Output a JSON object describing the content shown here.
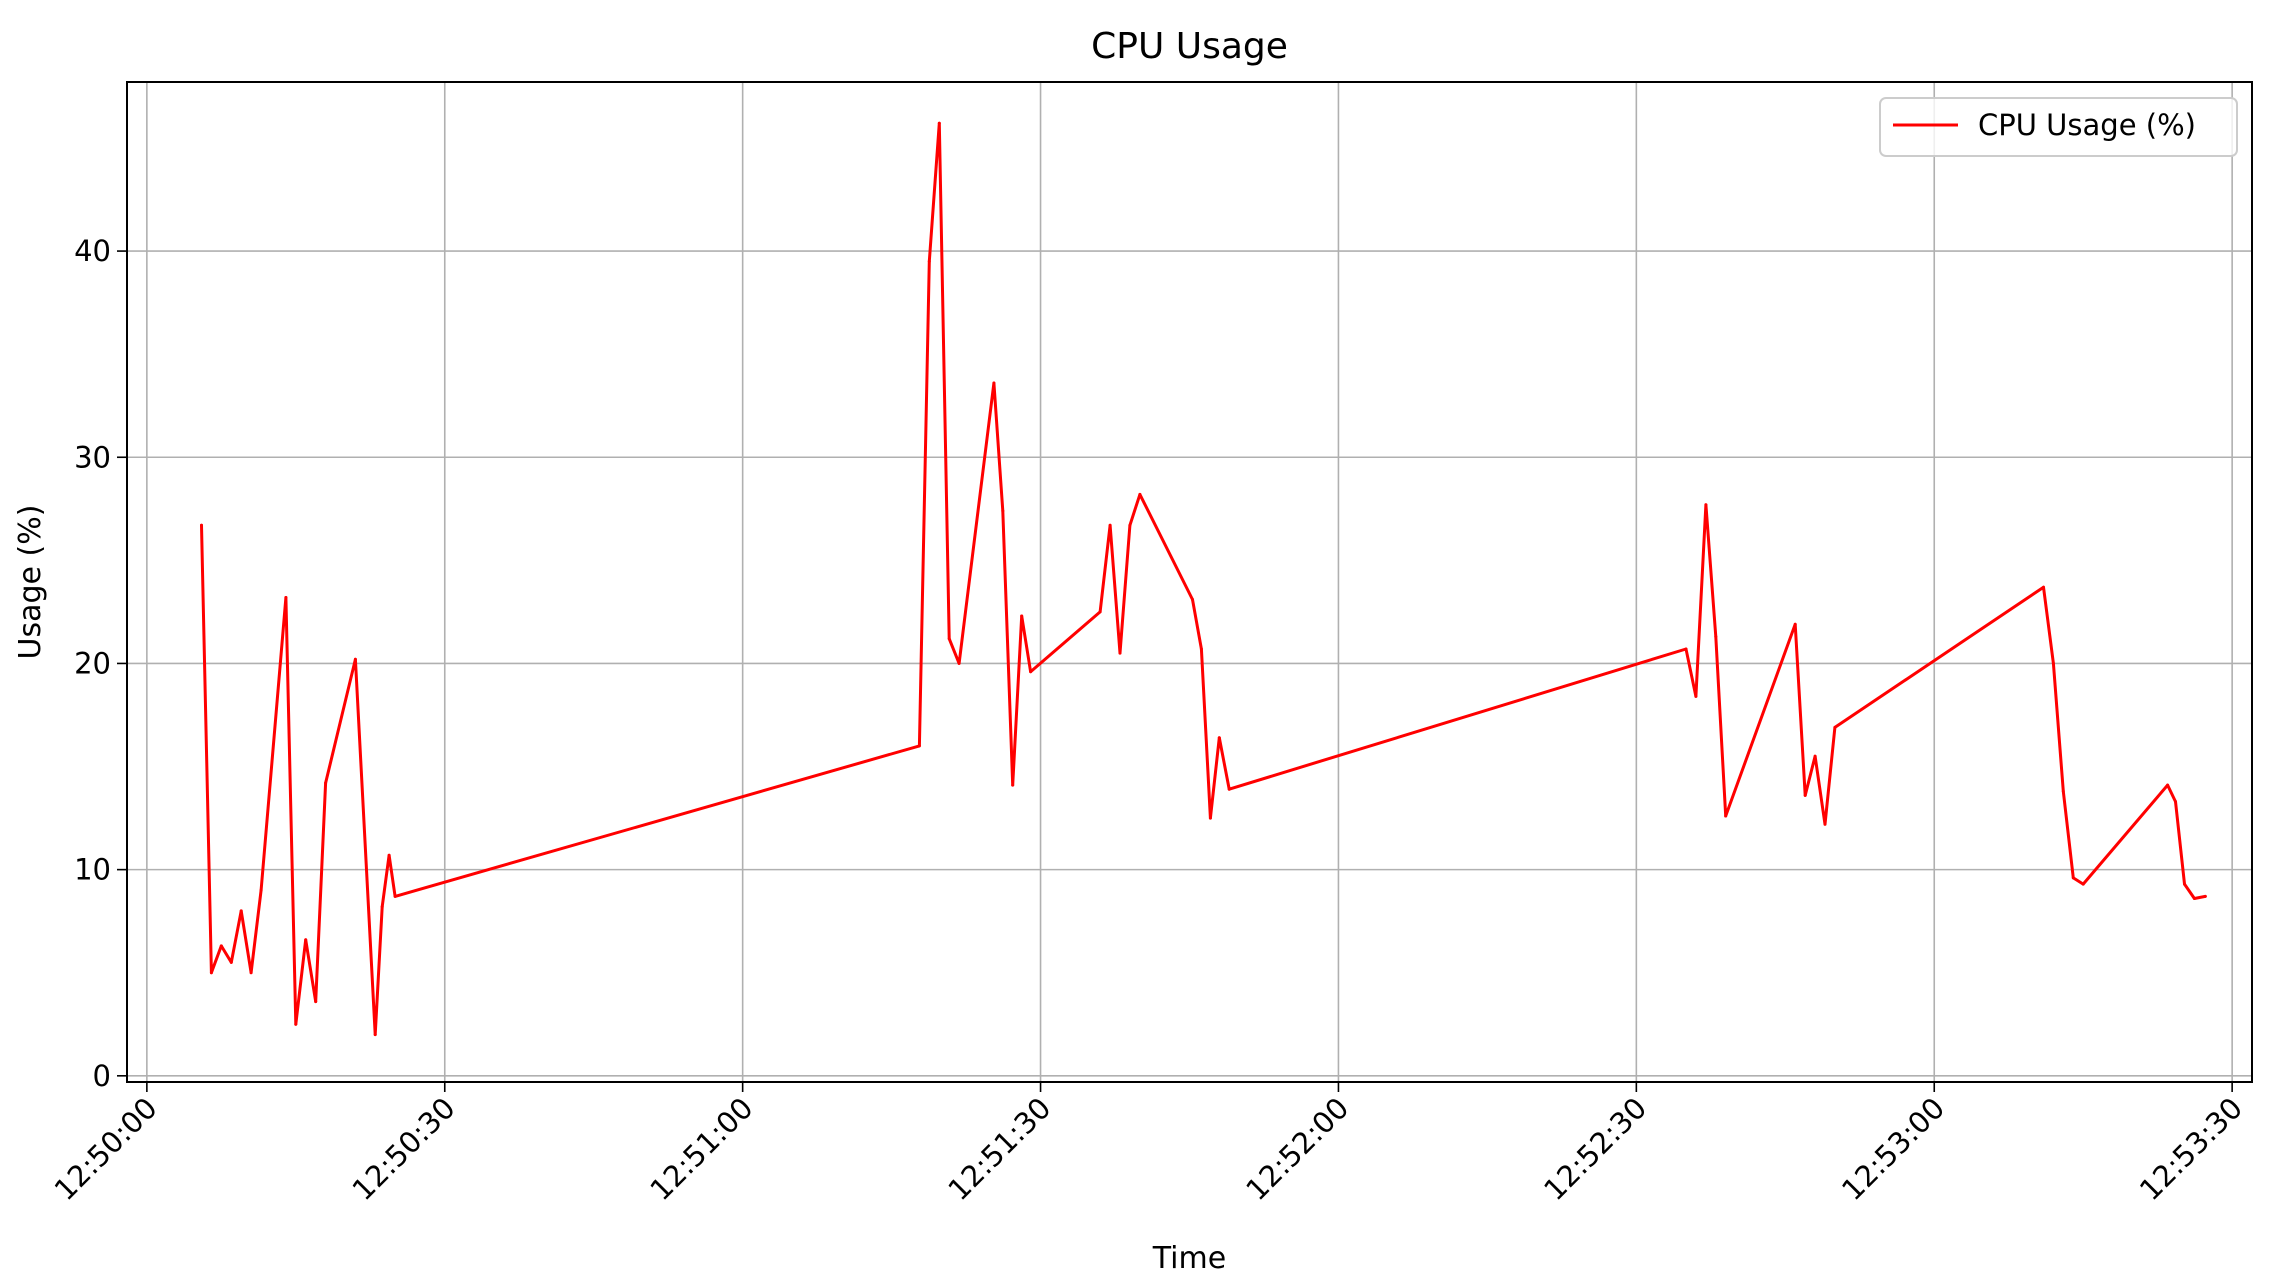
{
  "chart_data": {
    "type": "line",
    "title": "CPU Usage",
    "xlabel": "Time",
    "ylabel": "Usage (%)",
    "grid": true,
    "legend": {
      "position": "top-right",
      "entries": [
        "CPU Usage (%)"
      ]
    },
    "colors": {
      "series": "#ff0000",
      "grid": "#b0b0b0",
      "axes": "#000000",
      "legend_border": "#cccccc"
    },
    "xlim": [
      "12:49:58",
      "12:53:32"
    ],
    "ylim": [
      -0.3,
      48.2
    ],
    "x_ticks": [
      "12:50:00",
      "12:50:30",
      "12:51:00",
      "12:51:30",
      "12:52:00",
      "12:52:30",
      "12:53:00",
      "12:53:30"
    ],
    "y_ticks": [
      "0",
      "10",
      "20",
      "30",
      "40"
    ],
    "series": [
      {
        "name": "CPU Usage (%)",
        "color": "#ff0000",
        "x": [
          "12:50:05.5",
          "12:50:06.5",
          "12:50:07.5",
          "12:50:08.5",
          "12:50:09.5",
          "12:50:10.5",
          "12:50:11.5",
          "12:50:14",
          "12:50:15",
          "12:50:16",
          "12:50:17",
          "12:50:18",
          "12:50:21",
          "12:50:23",
          "12:50:23.7",
          "12:50:24.4",
          "12:50:25",
          "12:51:17.8",
          "12:51:18.8",
          "12:51:19.8",
          "12:51:20.8",
          "12:51:21.8",
          "12:51:25.3",
          "12:51:26.2",
          "12:51:27.2",
          "12:51:28.1",
          "12:51:29",
          "12:51:36",
          "12:51:37",
          "12:51:38",
          "12:51:39",
          "12:51:40",
          "12:51:45.3",
          "12:51:46.2",
          "12:51:47.1",
          "12:51:48",
          "12:51:49",
          "12:52:35",
          "12:52:36",
          "12:52:37",
          "12:52:38",
          "12:52:39",
          "12:52:46",
          "12:52:47",
          "12:52:48",
          "12:52:49",
          "12:52:50",
          "12:53:11",
          "12:53:12",
          "12:53:13",
          "12:53:14",
          "12:53:15",
          "12:53:23.5",
          "12:53:24.3",
          "12:53:25.2",
          "12:53:26.2",
          "12:53:27.3"
        ],
        "y": [
          26.7,
          5.0,
          6.3,
          5.5,
          8.0,
          5.0,
          9.0,
          23.2,
          2.5,
          6.6,
          3.6,
          14.2,
          20.2,
          2.0,
          8.2,
          10.7,
          8.7,
          16.0,
          39.5,
          46.2,
          21.2,
          20.0,
          33.6,
          27.4,
          14.1,
          22.3,
          19.6,
          22.5,
          26.7,
          20.5,
          26.7,
          28.2,
          23.1,
          20.7,
          12.5,
          16.4,
          13.9,
          20.7,
          18.4,
          27.7,
          21.3,
          12.6,
          21.9,
          13.6,
          15.5,
          12.2,
          16.9,
          23.7,
          20.0,
          13.8,
          9.6,
          9.3,
          14.1,
          13.3,
          9.3,
          8.6,
          8.7
        ]
      }
    ]
  }
}
